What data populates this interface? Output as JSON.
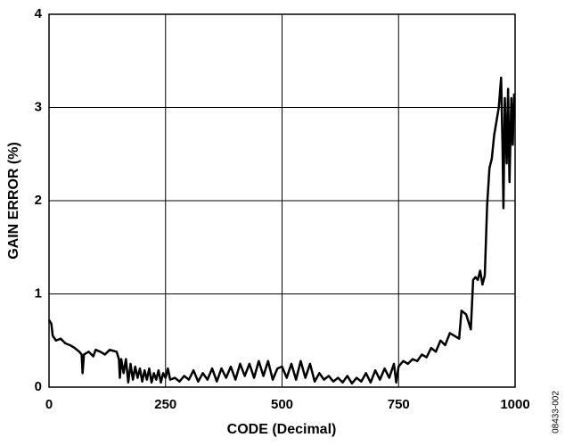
{
  "chart_data": {
    "type": "line",
    "xlabel": "CODE (Decimal)",
    "ylabel": "GAIN ERROR (%)",
    "annotation": "08433-002",
    "color": "#000000",
    "grid": true,
    "xlim": [
      0,
      1000
    ],
    "xticks": [
      0,
      250,
      500,
      750,
      1000
    ],
    "ylim": [
      0,
      4
    ],
    "yticks": [
      0,
      1,
      2,
      3,
      4
    ],
    "x": [
      0,
      5,
      8,
      15,
      25,
      35,
      45,
      55,
      65,
      70,
      72,
      75,
      85,
      95,
      100,
      110,
      120,
      130,
      145,
      150,
      152,
      155,
      160,
      165,
      170,
      175,
      180,
      185,
      190,
      195,
      200,
      205,
      210,
      215,
      220,
      225,
      230,
      235,
      240,
      245,
      250,
      255,
      260,
      270,
      280,
      290,
      300,
      310,
      320,
      330,
      340,
      350,
      360,
      370,
      380,
      390,
      400,
      410,
      420,
      430,
      440,
      450,
      460,
      470,
      480,
      490,
      500,
      510,
      520,
      530,
      540,
      550,
      560,
      570,
      580,
      590,
      600,
      610,
      620,
      630,
      640,
      650,
      660,
      670,
      680,
      690,
      700,
      710,
      720,
      730,
      740,
      745,
      750,
      760,
      770,
      780,
      790,
      800,
      810,
      820,
      830,
      840,
      850,
      860,
      870,
      880,
      885,
      895,
      905,
      910,
      915,
      920,
      925,
      930,
      935,
      940,
      945,
      950,
      955,
      960,
      965,
      970,
      973,
      975,
      978,
      982,
      985,
      988,
      992,
      995,
      998
    ],
    "values": [
      0.72,
      0.68,
      0.55,
      0.5,
      0.52,
      0.47,
      0.45,
      0.42,
      0.38,
      0.35,
      0.15,
      0.35,
      0.38,
      0.33,
      0.4,
      0.38,
      0.35,
      0.4,
      0.38,
      0.3,
      0.1,
      0.3,
      0.15,
      0.3,
      0.05,
      0.25,
      0.08,
      0.22,
      0.1,
      0.2,
      0.06,
      0.18,
      0.08,
      0.2,
      0.05,
      0.15,
      0.08,
      0.18,
      0.05,
      0.15,
      0.1,
      0.2,
      0.08,
      0.1,
      0.06,
      0.12,
      0.08,
      0.18,
      0.06,
      0.15,
      0.08,
      0.2,
      0.06,
      0.2,
      0.1,
      0.22,
      0.08,
      0.25,
      0.12,
      0.25,
      0.1,
      0.28,
      0.12,
      0.28,
      0.08,
      0.2,
      0.22,
      0.1,
      0.25,
      0.08,
      0.28,
      0.1,
      0.25,
      0.06,
      0.15,
      0.08,
      0.12,
      0.06,
      0.1,
      0.05,
      0.12,
      0.04,
      0.1,
      0.06,
      0.15,
      0.05,
      0.18,
      0.08,
      0.2,
      0.1,
      0.25,
      0.05,
      0.22,
      0.28,
      0.25,
      0.3,
      0.28,
      0.35,
      0.32,
      0.42,
      0.38,
      0.5,
      0.45,
      0.58,
      0.55,
      0.52,
      0.82,
      0.78,
      0.62,
      1.15,
      1.18,
      1.15,
      1.25,
      1.1,
      1.2,
      1.95,
      2.35,
      2.45,
      2.7,
      2.85,
      3.0,
      3.32,
      2.6,
      1.92,
      3.1,
      2.4,
      3.2,
      2.2,
      3.1,
      2.6,
      3.15
    ]
  }
}
